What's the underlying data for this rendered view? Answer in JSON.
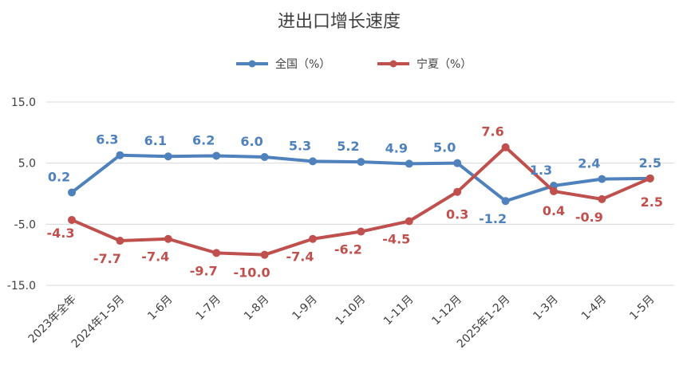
{
  "chart_data": {
    "type": "line",
    "title": "进出口增长速度",
    "categories": [
      "2023年全年",
      "2024年1-5月",
      "1-6月",
      "1-7月",
      "1-8月",
      "1-9月",
      "1-10月",
      "1-11月",
      "1-12月",
      "2025年1-2月",
      "1-3月",
      "1-4月",
      "1-5月"
    ],
    "ylim": [
      -15,
      15
    ],
    "yticks": [
      "15.0",
      "5.0",
      "-5.0",
      "-15.0"
    ],
    "ytick_values": [
      15,
      5,
      -5,
      -15
    ],
    "grid": true,
    "legend_position": "top-center",
    "series": [
      {
        "name": "全国（%）",
        "color": "#4f81bd",
        "values": [
          0.2,
          6.3,
          6.1,
          6.2,
          6.0,
          5.3,
          5.2,
          4.9,
          5.0,
          -1.2,
          1.3,
          2.4,
          2.5
        ],
        "labels": [
          "0.2",
          "6.3",
          "6.1",
          "6.2",
          "6.0",
          "5.3",
          "5.2",
          "4.9",
          "5.0",
          "-1.2",
          "1.3",
          "2.4",
          "2.5"
        ]
      },
      {
        "name": "宁夏（%）",
        "color": "#c0504d",
        "values": [
          -4.3,
          -7.7,
          -7.4,
          -9.7,
          -10.0,
          -7.4,
          -6.2,
          -4.5,
          0.3,
          7.6,
          0.4,
          -0.9,
          2.5
        ],
        "labels": [
          "-4.3",
          "-7.7",
          "-7.4",
          "-9.7",
          "-10.0",
          "-7.4",
          "-6.2",
          "-4.5",
          "0.3",
          "7.6",
          "0.4",
          "-0.9",
          "2.5"
        ]
      }
    ]
  }
}
